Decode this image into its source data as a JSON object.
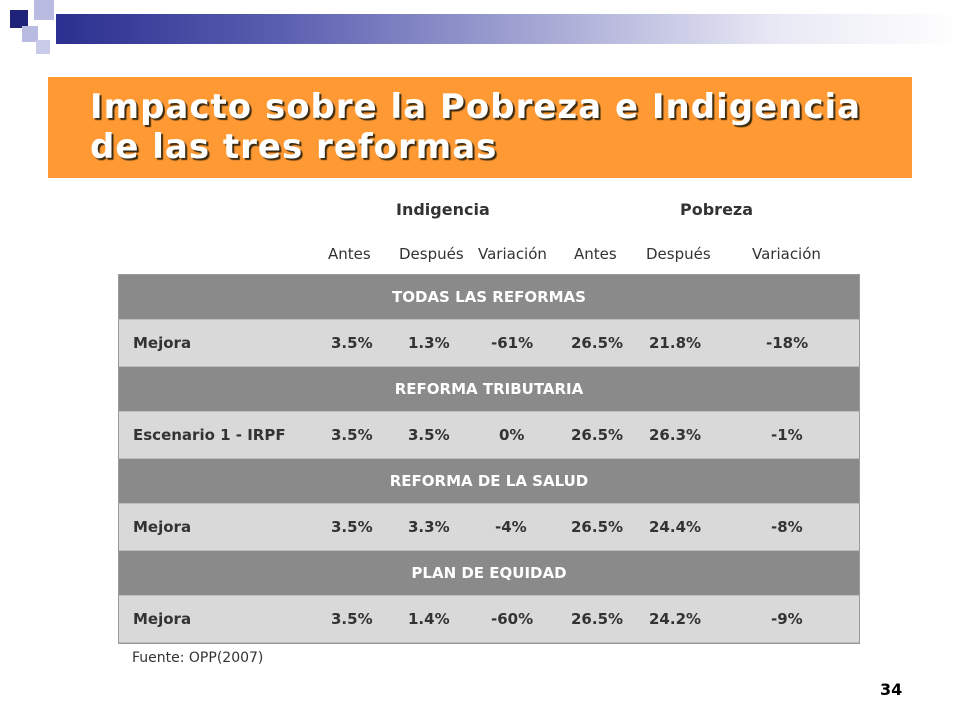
{
  "slide": {
    "title_line1": "Impacto sobre la Pobreza e Indigencia",
    "title_line2": "de las tres reformas",
    "page_number": "34"
  },
  "table": {
    "groups": [
      "Indigencia",
      "Pobreza"
    ],
    "columns": [
      "Antes",
      "Después",
      "Variación",
      "Antes",
      "Después",
      "Variación"
    ],
    "sections": [
      {
        "name": "TODAS LAS REFORMAS",
        "row": {
          "label": "Mejora",
          "values": [
            "3.5%",
            "1.3%",
            "-61%",
            "26.5%",
            "21.8%",
            "-18%"
          ]
        }
      },
      {
        "name": "REFORMA TRIBUTARIA",
        "row": {
          "label": "Escenario 1 - IRPF",
          "values": [
            "3.5%",
            "3.5%",
            "0%",
            "26.5%",
            "26.3%",
            "-1%"
          ]
        }
      },
      {
        "name": "REFORMA DE LA SALUD",
        "row": {
          "label": "Mejora",
          "values": [
            "3.5%",
            "3.3%",
            "-4%",
            "26.5%",
            "24.4%",
            "-8%"
          ]
        }
      },
      {
        "name": "PLAN DE EQUIDAD",
        "row": {
          "label": "Mejora",
          "values": [
            "3.5%",
            "1.4%",
            "-60%",
            "26.5%",
            "24.2%",
            "-9%"
          ]
        }
      }
    ],
    "source": "Fuente: OPP(2007)"
  },
  "colors": {
    "banner": "#ff9933",
    "section_bg": "#8a8a8a",
    "row_bg": "#d9d9d9"
  }
}
